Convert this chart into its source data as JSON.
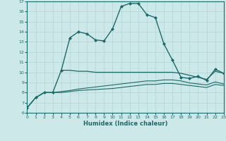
{
  "xlabel": "Humidex (Indice chaleur)",
  "xlim": [
    0,
    23
  ],
  "ylim": [
    6,
    17
  ],
  "yticks": [
    6,
    7,
    8,
    9,
    10,
    11,
    12,
    13,
    14,
    15,
    16,
    17
  ],
  "xticks": [
    0,
    1,
    2,
    3,
    4,
    5,
    6,
    7,
    8,
    9,
    10,
    11,
    12,
    13,
    14,
    15,
    16,
    17,
    18,
    19,
    20,
    21,
    22,
    23
  ],
  "background_color": "#cce8e8",
  "grid_color": "#b0d4d4",
  "line_color": "#1a6b6b",
  "series": [
    {
      "x": [
        0,
        1,
        2,
        3,
        4,
        5,
        6,
        7,
        8,
        9,
        10,
        11,
        12,
        13,
        14,
        15,
        16,
        17,
        18,
        19,
        20,
        21,
        22,
        23
      ],
      "y": [
        6.5,
        7.5,
        8.0,
        8.0,
        10.2,
        13.4,
        14.0,
        13.8,
        13.2,
        13.1,
        14.3,
        16.5,
        16.8,
        16.8,
        15.7,
        15.4,
        12.8,
        11.2,
        9.5,
        9.4,
        9.6,
        9.2,
        10.3,
        9.9
      ],
      "marker": true,
      "linewidth": 1.0
    },
    {
      "x": [
        4,
        5,
        6,
        7,
        8,
        9,
        10,
        11,
        12,
        13,
        14,
        15,
        16,
        17,
        18,
        19,
        20,
        21,
        22,
        23
      ],
      "y": [
        10.2,
        10.2,
        10.1,
        10.1,
        10.0,
        10.0,
        10.0,
        10.0,
        10.0,
        10.0,
        10.0,
        10.0,
        10.0,
        10.0,
        9.9,
        9.7,
        9.5,
        9.3,
        10.1,
        9.9
      ],
      "marker": false,
      "linewidth": 0.9
    },
    {
      "x": [
        0,
        1,
        2,
        3,
        4,
        5,
        6,
        7,
        8,
        9,
        10,
        11,
        12,
        13,
        14,
        15,
        16,
        17,
        18,
        19,
        20,
        21,
        22,
        23
      ],
      "y": [
        6.5,
        7.5,
        8.0,
        8.0,
        8.1,
        8.2,
        8.35,
        8.45,
        8.55,
        8.65,
        8.75,
        8.85,
        8.95,
        9.05,
        9.15,
        9.15,
        9.25,
        9.25,
        9.15,
        8.95,
        8.85,
        8.75,
        9.05,
        8.85
      ],
      "marker": false,
      "linewidth": 0.8
    },
    {
      "x": [
        0,
        1,
        2,
        3,
        4,
        5,
        6,
        7,
        8,
        9,
        10,
        11,
        12,
        13,
        14,
        15,
        16,
        17,
        18,
        19,
        20,
        21,
        22,
        23
      ],
      "y": [
        6.5,
        7.5,
        8.0,
        8.0,
        8.0,
        8.1,
        8.2,
        8.25,
        8.3,
        8.35,
        8.4,
        8.5,
        8.6,
        8.7,
        8.8,
        8.8,
        8.9,
        8.9,
        8.8,
        8.7,
        8.6,
        8.5,
        8.8,
        8.7
      ],
      "marker": false,
      "linewidth": 0.8
    }
  ]
}
